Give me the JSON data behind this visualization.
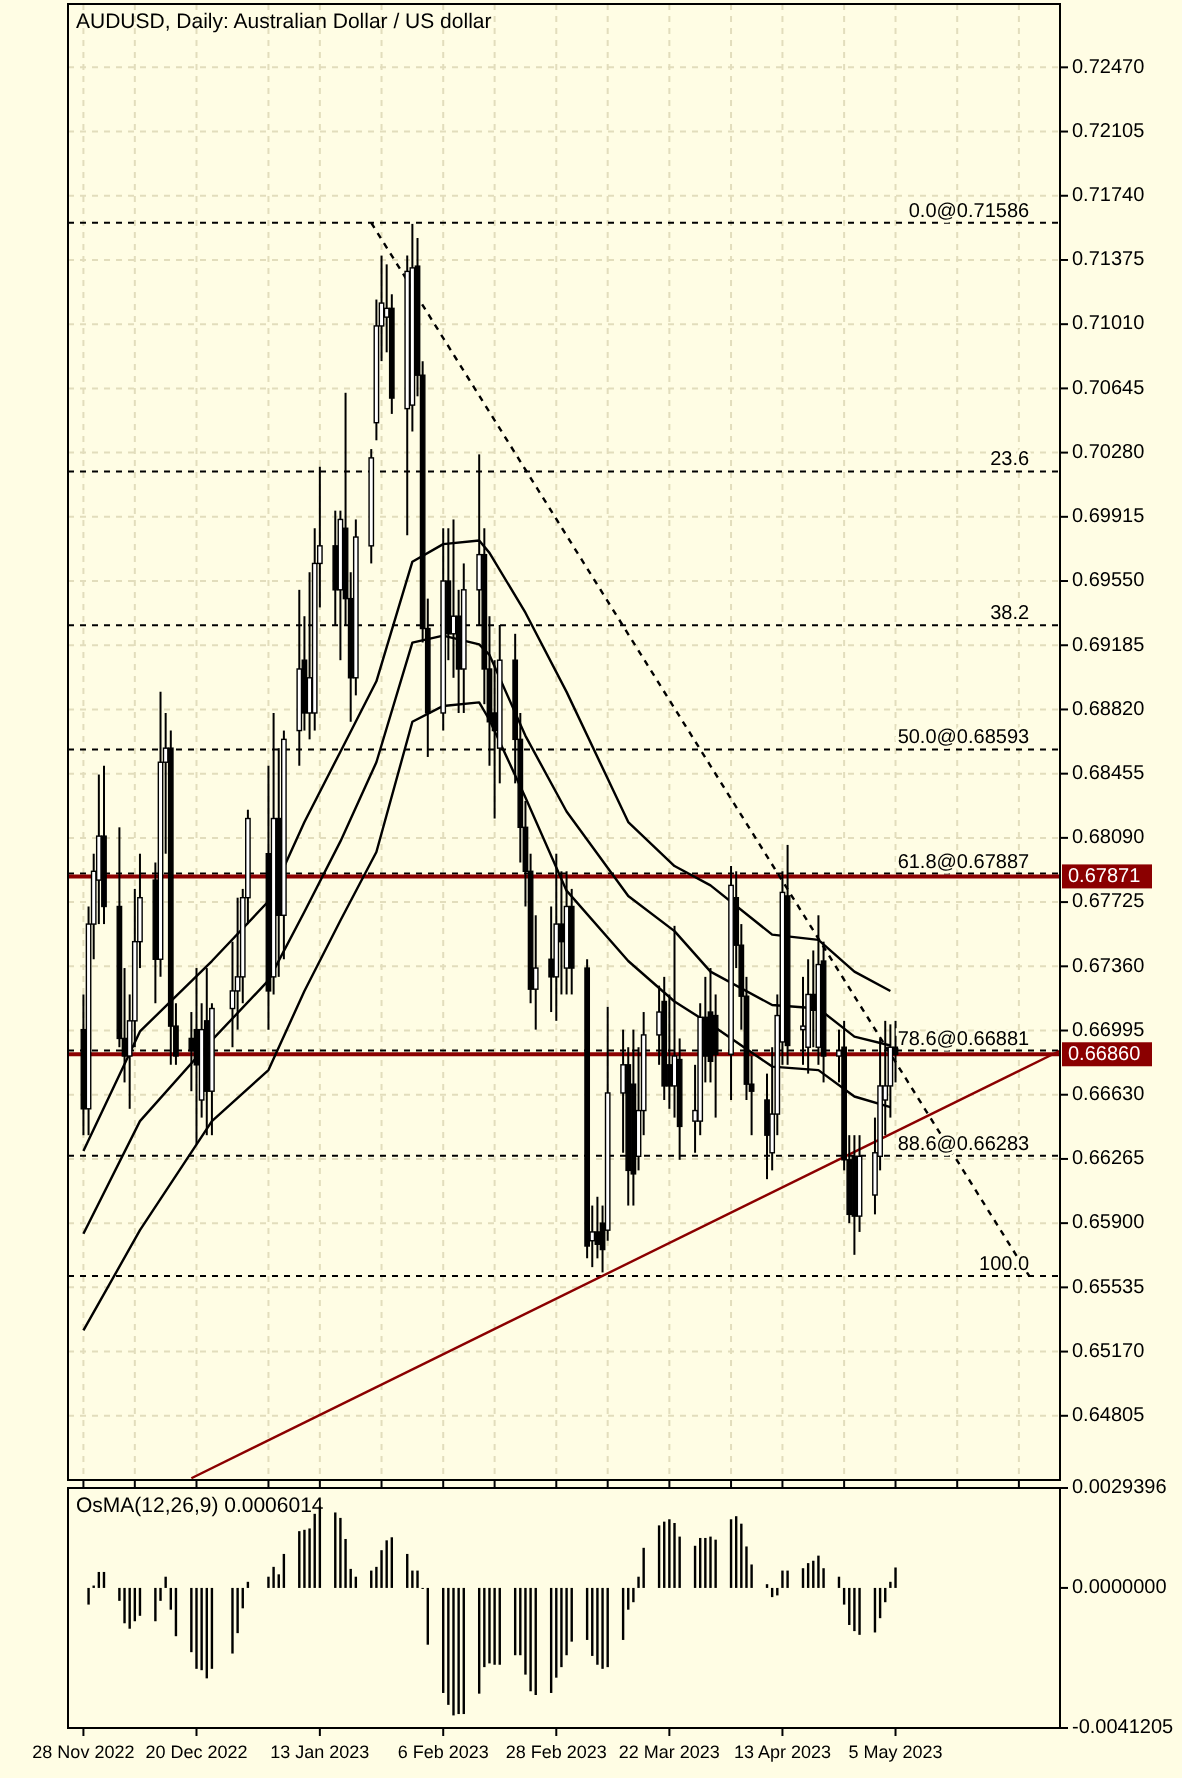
{
  "chart_data": [
    {
      "type": "candlestick",
      "title": "AUDUSD, Daily:  Australian Dollar / US dollar",
      "color": "#000000",
      "x": [
        "2022-11-28",
        "2022-11-29",
        "2022-11-30",
        "2022-12-01",
        "2022-12-02",
        "2022-12-05",
        "2022-12-06",
        "2022-12-07",
        "2022-12-08",
        "2022-12-09",
        "2022-12-12",
        "2022-12-13",
        "2022-12-14",
        "2022-12-15",
        "2022-12-16",
        "2022-12-19",
        "2022-12-20",
        "2022-12-21",
        "2022-12-22",
        "2022-12-23",
        "2022-12-27",
        "2022-12-28",
        "2022-12-29",
        "2022-12-30",
        "2023-01-03",
        "2023-01-04",
        "2023-01-05",
        "2023-01-06",
        "2023-01-09",
        "2023-01-10",
        "2023-01-11",
        "2023-01-12",
        "2023-01-13",
        "2023-01-16",
        "2023-01-17",
        "2023-01-18",
        "2023-01-19",
        "2023-01-20",
        "2023-01-23",
        "2023-01-24",
        "2023-01-25",
        "2023-01-26",
        "2023-01-27",
        "2023-01-30",
        "2023-01-31",
        "2023-02-01",
        "2023-02-02",
        "2023-02-03",
        "2023-02-06",
        "2023-02-07",
        "2023-02-08",
        "2023-02-09",
        "2023-02-10",
        "2023-02-13",
        "2023-02-14",
        "2023-02-15",
        "2023-02-16",
        "2023-02-17",
        "2023-02-20",
        "2023-02-21",
        "2023-02-22",
        "2023-02-23",
        "2023-02-24",
        "2023-02-27",
        "2023-02-28",
        "2023-03-01",
        "2023-03-02",
        "2023-03-03",
        "2023-03-06",
        "2023-03-07",
        "2023-03-08",
        "2023-03-09",
        "2023-03-10",
        "2023-03-13",
        "2023-03-14",
        "2023-03-15",
        "2023-03-16",
        "2023-03-17",
        "2023-03-20",
        "2023-03-21",
        "2023-03-22",
        "2023-03-23",
        "2023-03-24",
        "2023-03-27",
        "2023-03-28",
        "2023-03-29",
        "2023-03-30",
        "2023-03-31",
        "2023-04-03",
        "2023-04-04",
        "2023-04-05",
        "2023-04-06",
        "2023-04-07",
        "2023-04-10",
        "2023-04-11",
        "2023-04-12",
        "2023-04-13",
        "2023-04-14",
        "2023-04-17",
        "2023-04-18",
        "2023-04-19",
        "2023-04-20",
        "2023-04-21",
        "2023-04-24",
        "2023-04-25",
        "2023-04-26",
        "2023-04-27",
        "2023-04-28",
        "2023-05-01",
        "2023-05-02",
        "2023-05-03",
        "2023-05-04",
        "2023-05-05"
      ],
      "ohlc": [
        [
          0.67,
          0.672,
          0.664,
          0.6655
        ],
        [
          0.6655,
          0.677,
          0.664,
          0.676
        ],
        [
          0.676,
          0.68,
          0.674,
          0.679
        ],
        [
          0.6785,
          0.6845,
          0.676,
          0.681
        ],
        [
          0.681,
          0.685,
          0.676,
          0.677
        ],
        [
          0.677,
          0.6815,
          0.669,
          0.6695
        ],
        [
          0.6695,
          0.6735,
          0.667,
          0.6685
        ],
        [
          0.6685,
          0.672,
          0.6655,
          0.6705
        ],
        [
          0.6705,
          0.678,
          0.669,
          0.675
        ],
        [
          0.675,
          0.68,
          0.6735,
          0.6775
        ],
        [
          0.6785,
          0.6795,
          0.6715,
          0.674
        ],
        [
          0.674,
          0.6892,
          0.673,
          0.6852
        ],
        [
          0.6852,
          0.688,
          0.68,
          0.686
        ],
        [
          0.686,
          0.687,
          0.668,
          0.6702
        ],
        [
          0.6702,
          0.6715,
          0.668,
          0.6685
        ],
        [
          0.6695,
          0.671,
          0.6665,
          0.6688
        ],
        [
          0.67,
          0.6735,
          0.6635,
          0.668
        ],
        [
          0.666,
          0.6715,
          0.665,
          0.67
        ],
        [
          0.6705,
          0.6735,
          0.664,
          0.6665
        ],
        [
          0.6665,
          0.6715,
          0.664,
          0.6712
        ],
        [
          0.6712,
          0.675,
          0.669,
          0.6722
        ],
        [
          0.6722,
          0.6775,
          0.67,
          0.673
        ],
        [
          0.673,
          0.678,
          0.6715,
          0.6775
        ],
        [
          0.6775,
          0.6825,
          0.676,
          0.682
        ],
        [
          0.68,
          0.685,
          0.67,
          0.6722
        ],
        [
          0.673,
          0.688,
          0.672,
          0.682
        ],
        [
          0.682,
          0.686,
          0.673,
          0.6765
        ],
        [
          0.6765,
          0.687,
          0.674,
          0.6865
        ],
        [
          0.687,
          0.695,
          0.685,
          0.6905
        ],
        [
          0.691,
          0.6935,
          0.687,
          0.688
        ],
        [
          0.688,
          0.696,
          0.6865,
          0.69
        ],
        [
          0.688,
          0.6985,
          0.687,
          0.6965
        ],
        [
          0.6965,
          0.702,
          0.694,
          0.6975
        ],
        [
          0.6975,
          0.6995,
          0.693,
          0.695
        ],
        [
          0.695,
          0.6995,
          0.691,
          0.699
        ],
        [
          0.6985,
          0.7062,
          0.693,
          0.6945
        ],
        [
          0.6945,
          0.696,
          0.6875,
          0.69
        ],
        [
          0.69,
          0.699,
          0.689,
          0.698
        ],
        [
          0.6975,
          0.703,
          0.6965,
          0.7025
        ],
        [
          0.7045,
          0.7115,
          0.7035,
          0.71
        ],
        [
          0.71,
          0.714,
          0.708,
          0.7113
        ],
        [
          0.7105,
          0.7135,
          0.7085,
          0.711
        ],
        [
          0.711,
          0.7118,
          0.705,
          0.7059
        ],
        [
          0.7053,
          0.714,
          0.6981,
          0.7131
        ],
        [
          0.7055,
          0.7158,
          0.704,
          0.7133
        ],
        [
          0.7134,
          0.715,
          0.706,
          0.7072
        ],
        [
          0.7072,
          0.708,
          0.692,
          0.6928
        ],
        [
          0.6928,
          0.6945,
          0.6855,
          0.688
        ],
        [
          0.688,
          0.6985,
          0.687,
          0.6955
        ],
        [
          0.6955,
          0.6985,
          0.691,
          0.6925
        ],
        [
          0.6925,
          0.699,
          0.69,
          0.6935
        ],
        [
          0.6935,
          0.695,
          0.688,
          0.6905
        ],
        [
          0.6905,
          0.6965,
          0.688,
          0.695
        ],
        [
          0.695,
          0.7027,
          0.693,
          0.697
        ],
        [
          0.697,
          0.6985,
          0.6885,
          0.6905
        ],
        [
          0.6905,
          0.6935,
          0.685,
          0.6875
        ],
        [
          0.688,
          0.691,
          0.682,
          0.687
        ],
        [
          0.686,
          0.693,
          0.684,
          0.691
        ],
        [
          0.691,
          0.6925,
          0.684,
          0.6865
        ],
        [
          0.6865,
          0.688,
          0.6795,
          0.6815
        ],
        [
          0.6815,
          0.683,
          0.677,
          0.679
        ],
        [
          0.679,
          0.68,
          0.6715,
          0.6723
        ],
        [
          0.6723,
          0.6765,
          0.67,
          0.6735
        ],
        [
          0.674,
          0.677,
          0.671,
          0.673
        ],
        [
          0.673,
          0.68,
          0.6705,
          0.676
        ],
        [
          0.676,
          0.679,
          0.672,
          0.675
        ],
        [
          0.6735,
          0.679,
          0.672,
          0.677
        ],
        [
          0.677,
          0.678,
          0.672,
          0.6735
        ],
        [
          0.6735,
          0.674,
          0.657,
          0.6577
        ],
        [
          0.658,
          0.66,
          0.6565,
          0.6585
        ],
        [
          0.6585,
          0.6605,
          0.657,
          0.6578
        ],
        [
          0.659,
          0.66,
          0.6562,
          0.6575
        ],
        [
          0.6586,
          0.6713,
          0.658,
          0.6664
        ],
        [
          0.6664,
          0.67,
          0.663,
          0.668
        ],
        [
          0.668,
          0.669,
          0.66,
          0.662
        ],
        [
          0.6669,
          0.67,
          0.66,
          0.6618
        ],
        [
          0.6628,
          0.669,
          0.662,
          0.6654
        ],
        [
          0.6654,
          0.671,
          0.664,
          0.6697
        ],
        [
          0.6697,
          0.6725,
          0.668,
          0.671
        ],
        [
          0.6716,
          0.673,
          0.666,
          0.6668
        ],
        [
          0.668,
          0.672,
          0.6655,
          0.6668
        ],
        [
          0.6668,
          0.6759,
          0.665,
          0.6685
        ],
        [
          0.6683,
          0.6695,
          0.6626,
          0.6645
        ],
        [
          0.6648,
          0.668,
          0.663,
          0.6654
        ],
        [
          0.6648,
          0.6715,
          0.664,
          0.6707
        ],
        [
          0.6707,
          0.673,
          0.667,
          0.6685
        ],
        [
          0.671,
          0.6735,
          0.667,
          0.6682
        ],
        [
          0.6708,
          0.672,
          0.665,
          0.6686
        ],
        [
          0.6686,
          0.6793,
          0.666,
          0.6782
        ],
        [
          0.6775,
          0.679,
          0.6735,
          0.6748
        ],
        [
          0.6748,
          0.676,
          0.67,
          0.6719
        ],
        [
          0.6719,
          0.673,
          0.666,
          0.6669
        ],
        [
          0.6669,
          0.6685,
          0.664,
          0.6665
        ],
        [
          0.666,
          0.6675,
          0.6615,
          0.664
        ],
        [
          0.663,
          0.669,
          0.662,
          0.6652
        ],
        [
          0.6652,
          0.672,
          0.664,
          0.6708
        ],
        [
          0.6693,
          0.679,
          0.668,
          0.6778
        ],
        [
          0.6776,
          0.6805,
          0.668,
          0.6691
        ],
        [
          0.67,
          0.673,
          0.668,
          0.6702
        ],
        [
          0.669,
          0.674,
          0.6675,
          0.672
        ],
        [
          0.672,
          0.6745,
          0.669,
          0.6711
        ],
        [
          0.669,
          0.6765,
          0.668,
          0.6737
        ],
        [
          0.6739,
          0.675,
          0.667,
          0.6685
        ],
        [
          0.6685,
          0.67,
          0.667,
          0.6688
        ],
        [
          0.669,
          0.6705,
          0.662,
          0.6626
        ],
        [
          0.6626,
          0.664,
          0.659,
          0.6595
        ],
        [
          0.6628,
          0.664,
          0.6572,
          0.6594
        ],
        [
          0.6594,
          0.664,
          0.6585,
          0.6628
        ],
        [
          0.6606,
          0.665,
          0.6595,
          0.663
        ],
        [
          0.6628,
          0.6695,
          0.662,
          0.6668
        ],
        [
          0.666,
          0.6705,
          0.664,
          0.6668
        ],
        [
          0.6668,
          0.6703,
          0.665,
          0.669
        ],
        [
          0.669,
          0.6705,
          0.667,
          0.6686
        ]
      ],
      "series": [
        {
          "type": "line",
          "color": "#000000",
          "x": [
            "2022-11-28",
            "2022-12-09",
            "2022-12-23",
            "2023-01-03",
            "2023-01-10",
            "2023-01-17",
            "2023-01-24",
            "2023-01-31",
            "2023-02-06",
            "2023-02-13",
            "2023-02-15",
            "2023-02-22",
            "2023-03-02",
            "2023-03-14",
            "2023-03-23",
            "2023-03-30",
            "2023-04-11",
            "2023-04-20",
            "2023-04-27",
            "2023-05-04"
          ],
          "values": [
            0.6631,
            0.6699,
            0.6739,
            0.6773,
            0.6818,
            0.6858,
            0.6898,
            0.6966,
            0.6976,
            0.6978,
            0.6971,
            0.6937,
            0.6892,
            0.6818,
            0.6793,
            0.6782,
            0.6754,
            0.6751,
            0.6733,
            0.6722
          ]
        },
        {
          "type": "line",
          "color": "#000000",
          "x": [
            "2022-11-28",
            "2022-12-09",
            "2022-12-23",
            "2023-01-03",
            "2023-01-10",
            "2023-01-17",
            "2023-01-24",
            "2023-01-31",
            "2023-02-06",
            "2023-02-13",
            "2023-02-15",
            "2023-02-22",
            "2023-03-02",
            "2023-03-14",
            "2023-03-23",
            "2023-03-30",
            "2023-04-11",
            "2023-04-20",
            "2023-04-27",
            "2023-05-04"
          ],
          "values": [
            0.6584,
            0.6648,
            0.6694,
            0.6728,
            0.6767,
            0.6807,
            0.6852,
            0.692,
            0.6924,
            0.6919,
            0.6913,
            0.6867,
            0.6824,
            0.6776,
            0.6756,
            0.6733,
            0.6714,
            0.6712,
            0.6696,
            0.6691
          ]
        },
        {
          "type": "line",
          "color": "#000000",
          "x": [
            "2022-11-28",
            "2022-12-09",
            "2022-12-23",
            "2023-01-03",
            "2023-01-10",
            "2023-01-17",
            "2023-01-24",
            "2023-01-31",
            "2023-02-06",
            "2023-02-13",
            "2023-02-15",
            "2023-02-22",
            "2023-03-02",
            "2023-03-14",
            "2023-03-23",
            "2023-03-30",
            "2023-04-11",
            "2023-04-20",
            "2023-04-27",
            "2023-05-04"
          ],
          "values": [
            0.6529,
            0.6586,
            0.6648,
            0.6677,
            0.6722,
            0.6762,
            0.6801,
            0.6875,
            0.6884,
            0.6886,
            0.6876,
            0.6832,
            0.6779,
            0.6739,
            0.6716,
            0.6703,
            0.6679,
            0.6677,
            0.6662,
            0.6656
          ]
        },
        {
          "type": "line",
          "color": "#000000",
          "line_style": "dashed",
          "x": [
            "2023-01-23",
            "2023-05-31"
          ],
          "values": [
            0.71586,
            0.656
          ]
        },
        {
          "type": "line",
          "color": "#8b0000",
          "x": [
            "2022-12-19",
            "2023-06-06"
          ],
          "values": [
            0.6445,
            0.6688
          ]
        }
      ],
      "xlim": [
        "2022-11-25",
        "2023-06-06"
      ],
      "xticks": [
        {
          "value": "2022-11-28",
          "label": null
        },
        {
          "value": "2022-12-08",
          "label": null
        },
        {
          "value": "2022-12-20",
          "label": null
        },
        {
          "value": "2023-01-03",
          "label": null
        },
        {
          "value": "2023-01-13",
          "label": null
        },
        {
          "value": "2023-01-25",
          "label": null
        },
        {
          "value": "2023-02-06",
          "label": null
        },
        {
          "value": "2023-02-16",
          "label": null
        },
        {
          "value": "2023-02-28",
          "label": null
        },
        {
          "value": "2023-03-10",
          "label": null
        },
        {
          "value": "2023-03-22",
          "label": null
        },
        {
          "value": "2023-04-03",
          "label": null
        },
        {
          "value": "2023-04-13",
          "label": null
        },
        {
          "value": "2023-04-25",
          "label": null
        },
        {
          "value": "2023-05-05",
          "label": null
        },
        {
          "value": "2023-05-17",
          "label": null
        },
        {
          "value": "2023-05-29",
          "label": null
        }
      ],
      "ylim": [
        0.6444,
        0.7283
      ],
      "yticks": [
        {
          "value": 0.7247,
          "label": "0.72470"
        },
        0.72105,
        {
          "value": 0.7174,
          "label": "0.71740"
        },
        0.71375,
        {
          "value": 0.7101,
          "label": "0.71010"
        },
        0.70645,
        {
          "value": 0.7028,
          "label": "0.70280"
        },
        0.69915,
        {
          "value": 0.6955,
          "label": "0.69550"
        },
        0.69185,
        {
          "value": 0.6882,
          "label": "0.68820"
        },
        0.68455,
        {
          "value": 0.6809,
          "label": "0.68090"
        },
        0.67725,
        {
          "value": 0.6736,
          "label": "0.67360"
        },
        0.66995,
        {
          "value": 0.6663,
          "label": "0.66630"
        },
        0.66265,
        {
          "value": 0.659,
          "label": "0.65900"
        },
        0.65535,
        {
          "value": 0.6517,
          "label": "0.65170"
        },
        0.64805
      ],
      "ref_lines": [
        {
          "axis": "y",
          "value": 0.71586,
          "color": "#000000",
          "line_style": "dashed"
        },
        {
          "axis": "y",
          "value": 0.70173,
          "color": "#000000",
          "line_style": "dashed"
        },
        {
          "axis": "y",
          "value": 0.69299,
          "color": "#000000",
          "line_style": "dashed"
        },
        {
          "axis": "y",
          "value": 0.68593,
          "color": "#000000",
          "line_style": "dashed"
        },
        {
          "axis": "y",
          "value": 0.67887,
          "color": "#000000",
          "line_style": "dashed"
        },
        {
          "axis": "y",
          "value": 0.66881,
          "color": "#000000",
          "line_style": "dashed"
        },
        {
          "axis": "y",
          "value": 0.66283,
          "color": "#000000",
          "line_style": "dashed"
        },
        {
          "axis": "y",
          "value": 0.656,
          "color": "#000000",
          "line_style": "dashed"
        },
        {
          "axis": "y",
          "value": 0.67871,
          "label": "0.67871",
          "color": "#8b0000",
          "line_style": "solid"
        },
        {
          "axis": "y",
          "value": 0.6686,
          "label": "0.66860",
          "color": "#8b0000",
          "line_style": "solid"
        }
      ],
      "annotations": [
        {
          "text": "0.0@0.71586",
          "x": "2023-05-31",
          "y": 0.71586
        },
        {
          "text": "23.6",
          "x": "2023-05-31",
          "y": 0.70173
        },
        {
          "text": "38.2",
          "x": "2023-05-31",
          "y": 0.69299
        },
        {
          "text": "50.0@0.68593",
          "x": "2023-05-31",
          "y": 0.68593
        },
        {
          "text": "61.8@0.67887",
          "x": "2023-05-31",
          "y": 0.67887
        },
        {
          "text": "78.6@0.66881",
          "x": "2023-05-31",
          "y": 0.66881
        },
        {
          "text": "88.6@0.66283",
          "x": "2023-05-31",
          "y": 0.66283
        },
        {
          "text": "100.0",
          "x": "2023-05-31",
          "y": 0.656
        }
      ],
      "grid": true,
      "tick_labels": "y"
    },
    {
      "type": "bar",
      "title": "OsMA(12,26,9) 0.0006014",
      "color": "#000000",
      "x": [
        "2022-11-29",
        "2022-11-30",
        "2022-12-01",
        "2022-12-02",
        "2022-12-05",
        "2022-12-06",
        "2022-12-07",
        "2022-12-08",
        "2022-12-09",
        "2022-12-12",
        "2022-12-13",
        "2022-12-14",
        "2022-12-15",
        "2022-12-16",
        "2022-12-19",
        "2022-12-20",
        "2022-12-21",
        "2022-12-22",
        "2022-12-23",
        "2022-12-27",
        "2022-12-28",
        "2022-12-29",
        "2022-12-30",
        "2023-01-03",
        "2023-01-04",
        "2023-01-05",
        "2023-01-06",
        "2023-01-09",
        "2023-01-10",
        "2023-01-11",
        "2023-01-12",
        "2023-01-13",
        "2023-01-16",
        "2023-01-17",
        "2023-01-18",
        "2023-01-19",
        "2023-01-20",
        "2023-01-23",
        "2023-01-24",
        "2023-01-25",
        "2023-01-26",
        "2023-01-27",
        "2023-01-30",
        "2023-01-31",
        "2023-02-01",
        "2023-02-02",
        "2023-02-03",
        "2023-02-06",
        "2023-02-07",
        "2023-02-08",
        "2023-02-09",
        "2023-02-10",
        "2023-02-13",
        "2023-02-14",
        "2023-02-15",
        "2023-02-16",
        "2023-02-17",
        "2023-02-20",
        "2023-02-21",
        "2023-02-22",
        "2023-02-23",
        "2023-02-24",
        "2023-02-27",
        "2023-02-28",
        "2023-03-01",
        "2023-03-02",
        "2023-03-03",
        "2023-03-06",
        "2023-03-07",
        "2023-03-08",
        "2023-03-09",
        "2023-03-10",
        "2023-03-13",
        "2023-03-14",
        "2023-03-15",
        "2023-03-16",
        "2023-03-17",
        "2023-03-20",
        "2023-03-21",
        "2023-03-22",
        "2023-03-23",
        "2023-03-24",
        "2023-03-27",
        "2023-03-28",
        "2023-03-29",
        "2023-03-30",
        "2023-03-31",
        "2023-04-03",
        "2023-04-04",
        "2023-04-05",
        "2023-04-06",
        "2023-04-07",
        "2023-04-10",
        "2023-04-11",
        "2023-04-12",
        "2023-04-13",
        "2023-04-14",
        "2023-04-17",
        "2023-04-18",
        "2023-04-19",
        "2023-04-20",
        "2023-04-21",
        "2023-04-24",
        "2023-04-25",
        "2023-04-26",
        "2023-04-27",
        "2023-04-28",
        "2023-05-01",
        "2023-05-02",
        "2023-05-03",
        "2023-05-04",
        "2023-05-05"
      ],
      "values": [
        -0.00049,
        7e-05,
        0.00047,
        0.00047,
        -0.00038,
        -0.00104,
        -0.0012,
        -0.00098,
        -0.00082,
        -0.00098,
        -0.00038,
        0.00033,
        -0.00064,
        -0.00142,
        -0.00189,
        -0.00238,
        -0.00242,
        -0.00266,
        -0.00238,
        -0.00193,
        -0.00133,
        -0.0006,
        0.00018,
        0.00033,
        0.00062,
        0.0004,
        0.001,
        0.00167,
        0.00171,
        0.00175,
        0.00218,
        0.0024,
        0.00222,
        0.00206,
        0.00144,
        0.00056,
        0.00033,
        0.00051,
        0.00062,
        0.00111,
        0.0014,
        0.00149,
        0.001,
        0.00051,
        0.00051,
        0,
        -0.00167,
        -0.00309,
        -0.00344,
        -0.00375,
        -0.00371,
        -0.00371,
        -0.00311,
        -0.00233,
        -0.00222,
        -0.00226,
        -0.00226,
        -0.00198,
        -0.00198,
        -0.00255,
        -0.00304,
        -0.00315,
        -0.00309,
        -0.00264,
        -0.00233,
        -0.00198,
        -0.00158,
        -0.00153,
        -0.002,
        -0.00226,
        -0.00238,
        -0.00233,
        -0.00153,
        -0.00064,
        -0.00042,
        0.00033,
        0.00118,
        0.00184,
        0.00195,
        0.00202,
        0.00191,
        0.00151,
        0.00124,
        0.00147,
        0.00147,
        0.00151,
        0.00142,
        0.00202,
        0.00211,
        0.00189,
        0.00122,
        0.00069,
        0.00011,
        -0.00027,
        -0.00022,
        0.00051,
        0.00051,
        0.00058,
        0.00073,
        0.0008,
        0.00095,
        0.00058,
        0.00033,
        -0.00049,
        -0.00109,
        -0.00127,
        -0.00138,
        -0.00131,
        -0.00089,
        -0.00042,
        0.00018,
        0.0006014
      ],
      "xlim": [
        "2022-11-25",
        "2023-06-06"
      ],
      "xticks": [
        {
          "value": "2022-11-28",
          "label": "28 Nov 2022"
        },
        {
          "value": "2022-12-20",
          "label": "20 Dec 2022"
        },
        {
          "value": "2023-01-13",
          "label": "13 Jan 2023"
        },
        {
          "value": "2023-02-06",
          "label": "6 Feb 2023"
        },
        {
          "value": "2023-02-28",
          "label": "28 Feb 2023"
        },
        {
          "value": "2023-03-22",
          "label": "22 Mar 2023"
        },
        {
          "value": "2023-04-13",
          "label": "13 Apr 2023"
        },
        {
          "value": "2023-05-05",
          "label": "5 May 2023"
        }
      ],
      "ylim": [
        -0.0041205,
        0.0029396
      ],
      "yticks": [
        0.0029396,
        {
          "value": 0,
          "label": "0.0000000"
        },
        -0.0041205
      ]
    }
  ]
}
